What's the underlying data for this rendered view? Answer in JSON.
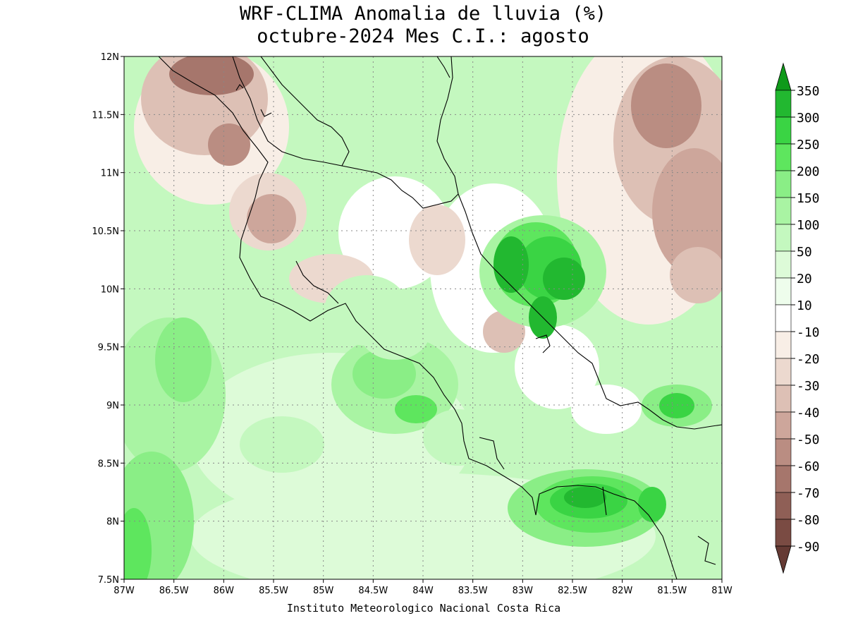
{
  "title": "WRF-CLIMA Anomalia de lluvia (%)",
  "subtitle": "octubre-2024 Mes C.I.: agosto",
  "credit": "Instituto Meteorologico Nacional Costa Rica",
  "x_axis": {
    "ticks": [
      "87W",
      "86.5W",
      "86W",
      "85.5W",
      "85W",
      "84.5W",
      "84W",
      "83.5W",
      "83W",
      "82.5W",
      "82W",
      "81.5W",
      "81W"
    ]
  },
  "y_axis": {
    "ticks": [
      "12N",
      "11.5N",
      "11N",
      "10.5N",
      "10N",
      "9.5N",
      "9N",
      "8.5N",
      "8N",
      "7.5N"
    ]
  },
  "map_region": {
    "lon_range": [
      -87,
      -81
    ],
    "lat_range": [
      7.5,
      12
    ]
  },
  "legend": {
    "levels": [
      "350",
      "300",
      "250",
      "200",
      "150",
      "100",
      "50",
      "20",
      "10",
      "-10",
      "-20",
      "-30",
      "-40",
      "-50",
      "-60",
      "-70",
      "-80",
      "-90"
    ],
    "colors": [
      "#0f9a1a",
      "#22b830",
      "#3ad444",
      "#5ee65e",
      "#8aee86",
      "#a9f4a3",
      "#c4f8bf",
      "#ddfbd8",
      "#eefdec",
      "#ffffff",
      "#f8eee6",
      "#ecd9cf",
      "#ddc0b5",
      "#cda69b",
      "#ba8d82",
      "#a6766c",
      "#8f5f56",
      "#7a4b43",
      "#653a34"
    ]
  },
  "map_legend_features": [
    "coastline",
    "lat-lon-grid"
  ]
}
